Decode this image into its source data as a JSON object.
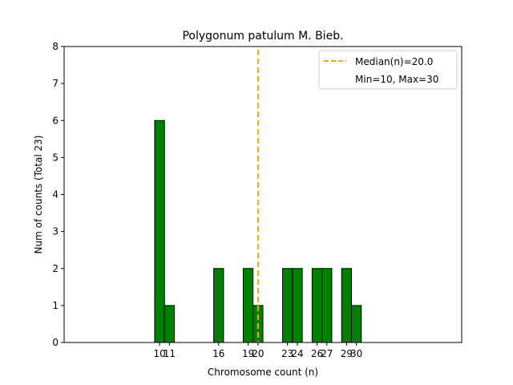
{
  "chart_data": {
    "type": "bar",
    "title": "Polygonum patulum M. Bieb.",
    "xlabel": "Chromosome count (n)",
    "ylabel": "Num of counts     (Total 23)",
    "x": [
      10,
      11,
      16,
      19,
      20,
      23,
      24,
      26,
      27,
      29,
      30
    ],
    "values": [
      6,
      1,
      2,
      2,
      1,
      2,
      2,
      2,
      2,
      2,
      1
    ],
    "xticks": [
      10,
      11,
      16,
      19,
      20,
      23,
      24,
      26,
      27,
      29,
      30
    ],
    "yticks": [
      0,
      1,
      2,
      3,
      4,
      5,
      6,
      7,
      8
    ],
    "xlim": [
      0.3,
      40.7
    ],
    "ylim": [
      0,
      8
    ],
    "bar_color": "#008000",
    "median": 20.0,
    "median_color": "#ffa500",
    "legend": {
      "placement": "top-right",
      "entries": [
        "Median(n)=20.0",
        "Min=10, Max=30"
      ]
    }
  }
}
